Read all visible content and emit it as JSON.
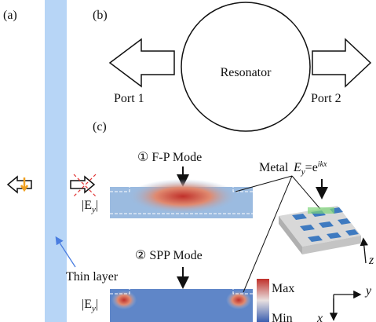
{
  "panels": {
    "a": "(a)",
    "b": "(b)",
    "c": "(c)"
  },
  "resonator": {
    "label": "Resonator",
    "port1": "Port 1",
    "port2": "Port 2"
  },
  "thin_layer": "Thin layer",
  "modes": [
    {
      "title": "① F-P Mode",
      "field": {
        "base": "|E",
        "sub": "y",
        "end": "|"
      }
    },
    {
      "title": "② SPP Mode",
      "field": {
        "base": "|E",
        "sub": "y",
        "end": "|"
      }
    }
  ],
  "colorbar": {
    "max": "Max",
    "min": "Min"
  },
  "metal": "Metal",
  "excitation": {
    "base": "E",
    "sub": "y",
    "mid": "=e",
    "sup": "ikx"
  },
  "axes": {
    "y": "y",
    "x": "x",
    "z": "z"
  }
}
